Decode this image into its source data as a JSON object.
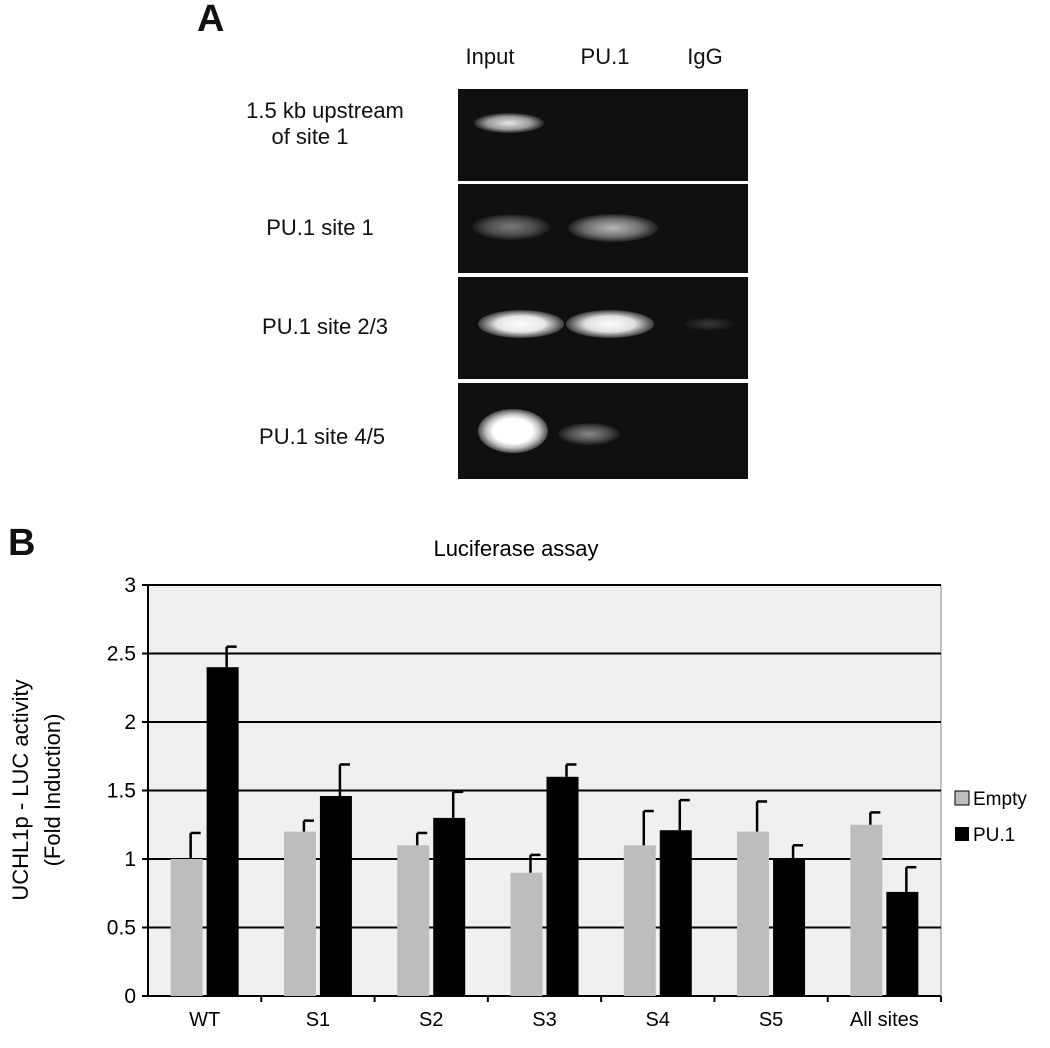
{
  "panel_a": {
    "letter": "A",
    "lanes": [
      "Input",
      "PU.1",
      "IgG"
    ],
    "rows": [
      {
        "label_line1": "1.5 kb upstream",
        "label_line2": "of  site 1"
      },
      {
        "label_line1": "PU.1 site 1",
        "label_line2": ""
      },
      {
        "label_line1": "PU.1 site 2/3",
        "label_line2": ""
      },
      {
        "label_line1": "PU.1 site 4/5",
        "label_line2": ""
      }
    ]
  },
  "panel_b": {
    "letter": "B"
  },
  "chart_data": {
    "type": "bar",
    "title": "Luciferase assay",
    "ylabel_line1": "UCHL1p - LUC activity",
    "ylabel_line2": "(Fold Induction)",
    "xlabel": "",
    "categories": [
      "WT",
      "S1",
      "S2",
      "S3",
      "S4",
      "S5",
      "All sites"
    ],
    "series": [
      {
        "name": "Empty",
        "color": "#bdbdbd",
        "values": [
          1.0,
          1.2,
          1.1,
          0.9,
          1.1,
          1.2,
          1.25
        ],
        "errors": [
          0.19,
          0.08,
          0.09,
          0.13,
          0.25,
          0.22,
          0.09
        ]
      },
      {
        "name": "PU.1",
        "color": "#000000",
        "values": [
          2.4,
          1.46,
          1.3,
          1.6,
          1.21,
          1.0,
          0.76
        ],
        "errors": [
          0.15,
          0.23,
          0.19,
          0.09,
          0.22,
          0.1,
          0.18
        ]
      }
    ],
    "yticks": [
      "0",
      "0.5",
      "1",
      "1.5",
      "2",
      "2.5",
      "3"
    ],
    "ylim": [
      0,
      3
    ],
    "grid": true,
    "legend": "right"
  }
}
